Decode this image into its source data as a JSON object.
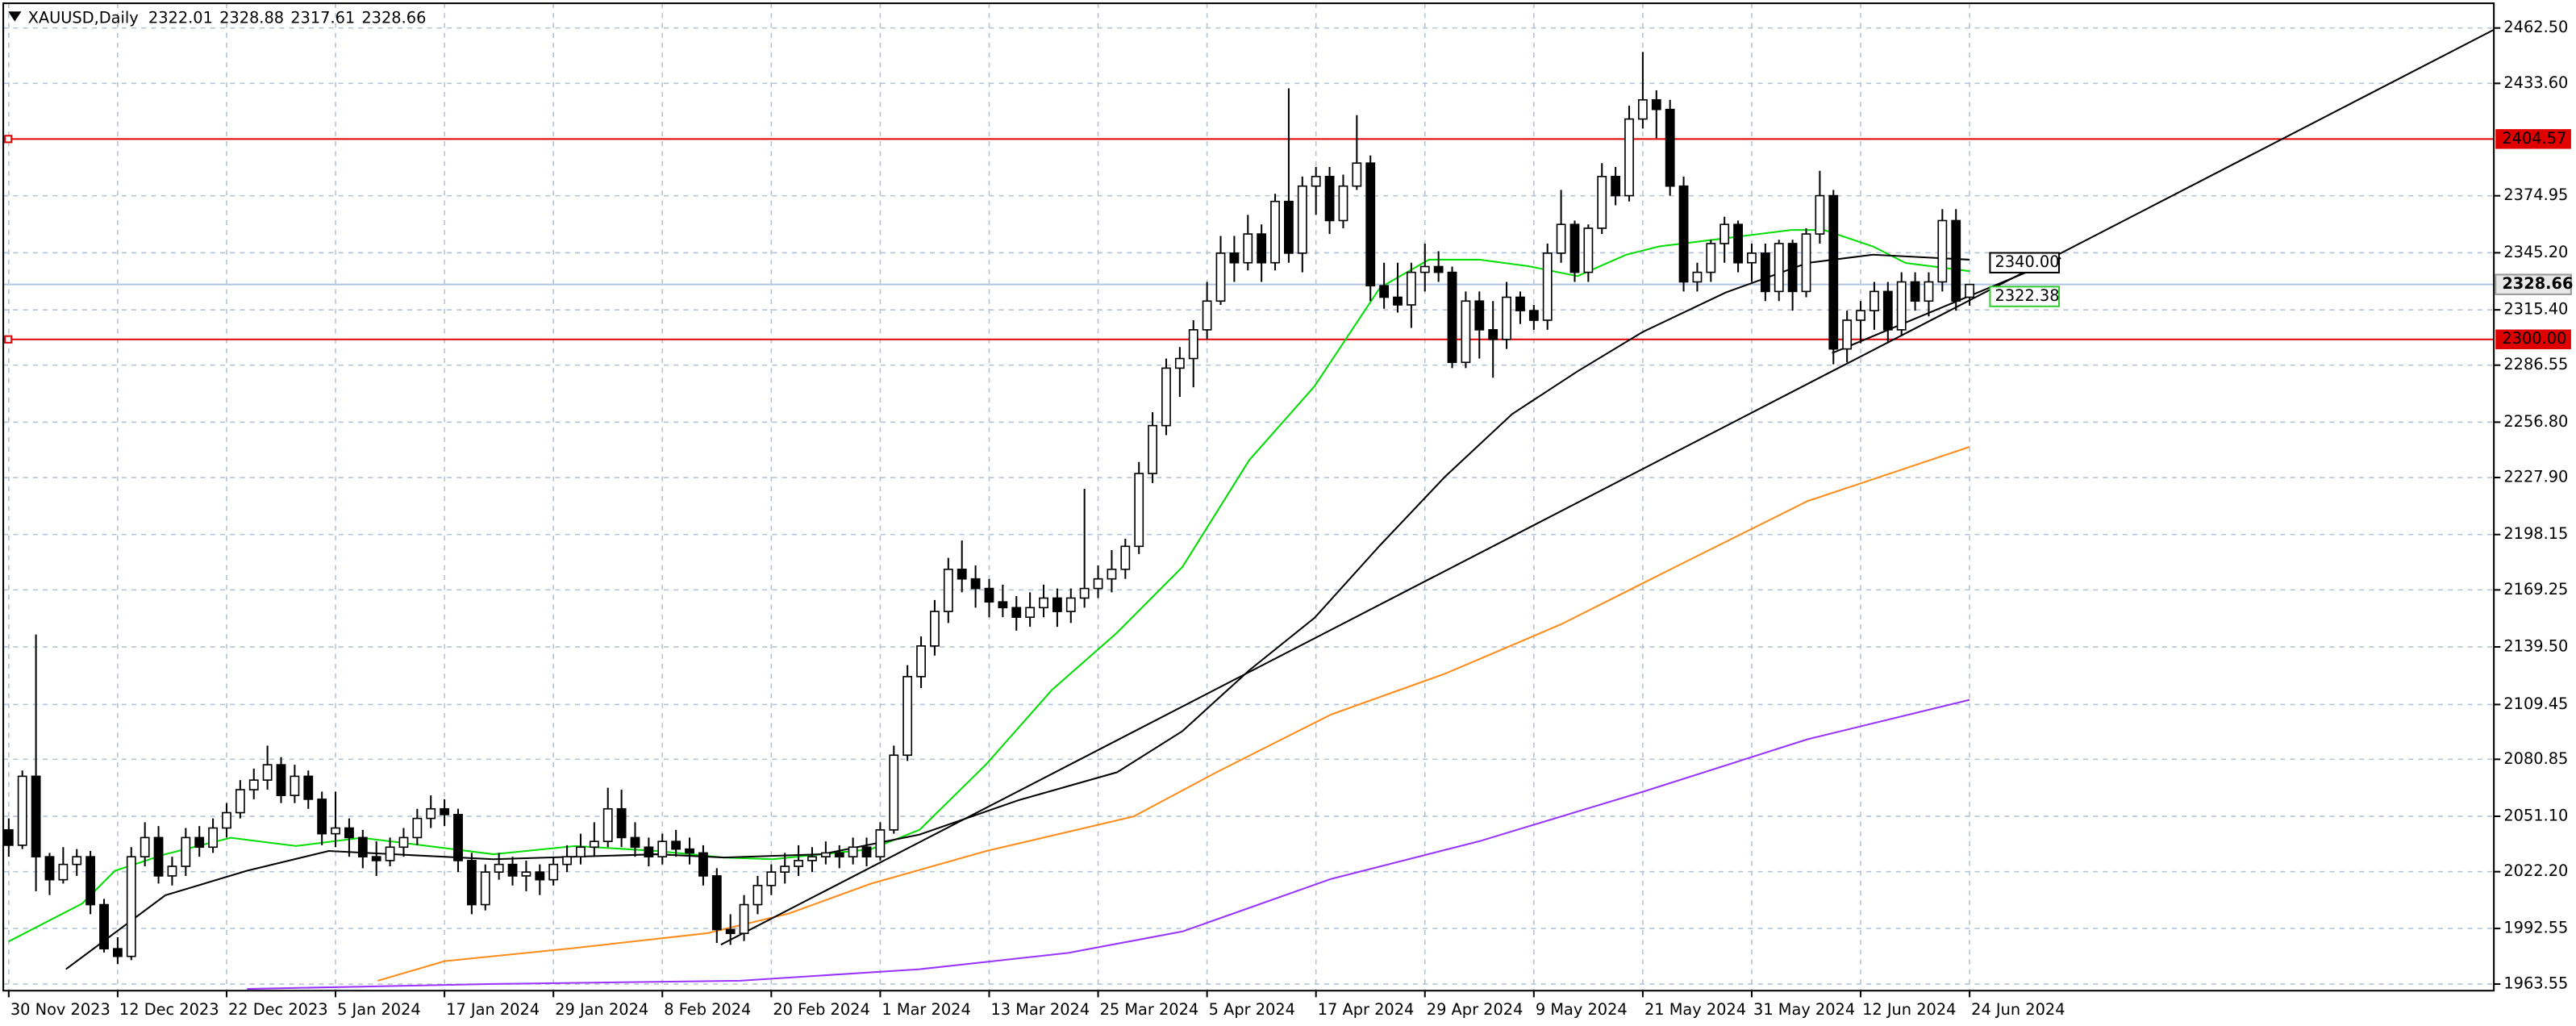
{
  "chart_data": {
    "type": "candlestick",
    "title": "XAUUSD,Daily",
    "xlim": [
      -0.4,
      182.5
    ],
    "ylim": [
      1960.1,
      2475.4
    ],
    "xticks": [
      {
        "value": 0,
        "label": "30 Nov 2023"
      },
      {
        "value": 8,
        "label": "12 Dec 2023"
      },
      {
        "value": 16,
        "label": "22 Dec 2023"
      },
      {
        "value": 24,
        "label": "5 Jan 2024"
      },
      {
        "value": 32,
        "label": "17 Jan 2024"
      },
      {
        "value": 40,
        "label": "29 Jan 2024"
      },
      {
        "value": 48,
        "label": "8 Feb 2024"
      },
      {
        "value": 56,
        "label": "20 Feb 2024"
      },
      {
        "value": 64,
        "label": "1 Mar 2024"
      },
      {
        "value": 72,
        "label": "13 Mar 2024"
      },
      {
        "value": 80,
        "label": "25 Mar 2024"
      },
      {
        "value": 88,
        "label": "5 Apr 2024"
      },
      {
        "value": 96,
        "label": "17 Apr 2024"
      },
      {
        "value": 104,
        "label": "29 Apr 2024"
      },
      {
        "value": 112,
        "label": "9 May 2024"
      },
      {
        "value": 120,
        "label": "21 May 2024"
      },
      {
        "value": 128,
        "label": "31 May 2024"
      },
      {
        "value": 136,
        "label": "12 Jun 2024"
      },
      {
        "value": 144,
        "label": "24 Jun 2024"
      }
    ],
    "yticks": [
      {
        "value": 2462.5,
        "label": "2462.50"
      },
      {
        "value": 2433.6,
        "label": "2433.60"
      },
      2374.95,
      {
        "value": 2345.2,
        "label": "2345.20"
      },
      {
        "value": 2315.4,
        "label": "2315.40"
      },
      2286.55,
      {
        "value": 2256.8,
        "label": "2256.80"
      },
      {
        "value": 2227.9,
        "label": "2227.90"
      },
      2198.15,
      2169.25,
      {
        "value": 2139.5,
        "label": "2139.50"
      },
      2109.45,
      2080.85,
      {
        "value": 2051.1,
        "label": "2051.10"
      },
      {
        "value": 2022.2,
        "label": "2022.20"
      },
      1992.55,
      1963.55
    ],
    "grid": true,
    "up_color": "#ffffff",
    "down_color": "#000000",
    "last_price_color": "#b0c4de",
    "candles": [
      [
        2044,
        2050,
        2030,
        2036
      ],
      [
        2036,
        2075,
        2034,
        2072
      ],
      [
        2072,
        2146,
        2012,
        2030
      ],
      [
        2030,
        2032,
        2010,
        2018
      ],
      [
        2018,
        2035,
        2016,
        2026
      ],
      [
        2026,
        2034,
        2020,
        2030
      ],
      [
        2030,
        2033,
        2000,
        2005
      ],
      [
        2005,
        2008,
        1980,
        1982
      ],
      [
        1982,
        1988,
        1974,
        1978
      ],
      [
        1978,
        2035,
        1976,
        2030
      ],
      [
        2030,
        2048,
        2025,
        2040
      ],
      [
        2040,
        2046,
        2016,
        2020
      ],
      [
        2020,
        2030,
        2015,
        2025
      ],
      [
        2025,
        2045,
        2020,
        2040
      ],
      [
        2040,
        2046,
        2030,
        2035
      ],
      [
        2035,
        2050,
        2032,
        2045
      ],
      [
        2045,
        2058,
        2040,
        2053
      ],
      [
        2053,
        2070,
        2050,
        2065
      ],
      [
        2065,
        2076,
        2060,
        2070
      ],
      [
        2070,
        2088,
        2065,
        2078
      ],
      [
        2078,
        2082,
        2058,
        2062
      ],
      [
        2062,
        2078,
        2058,
        2072
      ],
      [
        2072,
        2075,
        2055,
        2060
      ],
      [
        2060,
        2064,
        2036,
        2042
      ],
      [
        2042,
        2064,
        2035,
        2045
      ],
      [
        2045,
        2050,
        2030,
        2040
      ],
      [
        2040,
        2044,
        2024,
        2030
      ],
      [
        2030,
        2038,
        2020,
        2028
      ],
      [
        2028,
        2040,
        2025,
        2035
      ],
      [
        2035,
        2045,
        2030,
        2040
      ],
      [
        2040,
        2055,
        2036,
        2050
      ],
      [
        2050,
        2062,
        2045,
        2055
      ],
      [
        2055,
        2060,
        2046,
        2052
      ],
      [
        2052,
        2055,
        2022,
        2028
      ],
      [
        2028,
        2032,
        2000,
        2005
      ],
      [
        2005,
        2026,
        2002,
        2022
      ],
      [
        2022,
        2032,
        2018,
        2026
      ],
      [
        2026,
        2030,
        2015,
        2020
      ],
      [
        2020,
        2028,
        2012,
        2022
      ],
      [
        2022,
        2026,
        2010,
        2018
      ],
      [
        2018,
        2030,
        2015,
        2026
      ],
      [
        2026,
        2036,
        2022,
        2030
      ],
      [
        2030,
        2042,
        2026,
        2035
      ],
      [
        2035,
        2048,
        2030,
        2038
      ],
      [
        2038,
        2066,
        2035,
        2055
      ],
      [
        2055,
        2065,
        2035,
        2040
      ],
      [
        2040,
        2048,
        2030,
        2035
      ],
      [
        2035,
        2040,
        2025,
        2030
      ],
      [
        2030,
        2042,
        2026,
        2038
      ],
      [
        2038,
        2044,
        2030,
        2034
      ],
      [
        2034,
        2040,
        2026,
        2032
      ],
      [
        2032,
        2036,
        2015,
        2020
      ],
      [
        2020,
        2024,
        1985,
        1992
      ],
      [
        1992,
        2000,
        1984,
        1990
      ],
      [
        1990,
        2010,
        1986,
        2005
      ],
      [
        2005,
        2020,
        2000,
        2015
      ],
      [
        2015,
        2026,
        2010,
        2022
      ],
      [
        2022,
        2032,
        2016,
        2025
      ],
      [
        2025,
        2036,
        2020,
        2028
      ],
      [
        2028,
        2035,
        2022,
        2030
      ],
      [
        2030,
        2038,
        2026,
        2032
      ],
      [
        2032,
        2036,
        2024,
        2030
      ],
      [
        2030,
        2040,
        2026,
        2035
      ],
      [
        2035,
        2040,
        2025,
        2030
      ],
      [
        2030,
        2048,
        2028,
        2044
      ],
      [
        2044,
        2088,
        2042,
        2083
      ],
      [
        2083,
        2130,
        2080,
        2124
      ],
      [
        2124,
        2145,
        2118,
        2140
      ],
      [
        2140,
        2164,
        2135,
        2158
      ],
      [
        2158,
        2186,
        2152,
        2180
      ],
      [
        2180,
        2195,
        2168,
        2175
      ],
      [
        2175,
        2182,
        2160,
        2170
      ],
      [
        2170,
        2175,
        2155,
        2163
      ],
      [
        2163,
        2172,
        2155,
        2160
      ],
      [
        2160,
        2166,
        2148,
        2155
      ],
      [
        2155,
        2168,
        2150,
        2160
      ],
      [
        2160,
        2172,
        2155,
        2165
      ],
      [
        2165,
        2170,
        2150,
        2158
      ],
      [
        2158,
        2170,
        2152,
        2165
      ],
      [
        2165,
        2222,
        2160,
        2170
      ],
      [
        2170,
        2182,
        2165,
        2175
      ],
      [
        2175,
        2190,
        2168,
        2180
      ],
      [
        2180,
        2196,
        2175,
        2192
      ],
      [
        2192,
        2236,
        2188,
        2230
      ],
      [
        2230,
        2262,
        2225,
        2255
      ],
      [
        2255,
        2290,
        2250,
        2285
      ],
      [
        2285,
        2296,
        2270,
        2290
      ],
      [
        2290,
        2310,
        2275,
        2305
      ],
      [
        2305,
        2330,
        2300,
        2320
      ],
      [
        2320,
        2354,
        2318,
        2345
      ],
      [
        2345,
        2354,
        2330,
        2340
      ],
      [
        2340,
        2365,
        2336,
        2355
      ],
      [
        2355,
        2360,
        2330,
        2340
      ],
      [
        2340,
        2376,
        2336,
        2372
      ],
      [
        2372,
        2431,
        2340,
        2345
      ],
      [
        2345,
        2385,
        2335,
        2380
      ],
      [
        2380,
        2390,
        2365,
        2385
      ],
      [
        2385,
        2390,
        2355,
        2362
      ],
      [
        2362,
        2386,
        2358,
        2380
      ],
      [
        2380,
        2417,
        2378,
        2392
      ],
      [
        2392,
        2396,
        2320,
        2328
      ],
      [
        2328,
        2340,
        2316,
        2322
      ],
      [
        2322,
        2340,
        2314,
        2318
      ],
      [
        2318,
        2340,
        2306,
        2335
      ],
      [
        2335,
        2350,
        2325,
        2338
      ],
      [
        2338,
        2346,
        2330,
        2335
      ],
      [
        2335,
        2338,
        2285,
        2288
      ],
      [
        2288,
        2325,
        2285,
        2320
      ],
      [
        2320,
        2325,
        2290,
        2305
      ],
      [
        2305,
        2320,
        2280,
        2300
      ],
      [
        2300,
        2330,
        2295,
        2322
      ],
      [
        2322,
        2325,
        2308,
        2315
      ],
      [
        2315,
        2318,
        2305,
        2310
      ],
      [
        2310,
        2350,
        2305,
        2345
      ],
      [
        2345,
        2378,
        2340,
        2360
      ],
      [
        2360,
        2362,
        2330,
        2335
      ],
      [
        2335,
        2360,
        2330,
        2358
      ],
      [
        2358,
        2392,
        2355,
        2385
      ],
      [
        2385,
        2390,
        2370,
        2375
      ],
      [
        2375,
        2422,
        2372,
        2415
      ],
      [
        2415,
        2450,
        2410,
        2425
      ],
      [
        2425,
        2430,
        2405,
        2420
      ],
      [
        2420,
        2425,
        2375,
        2380
      ],
      [
        2380,
        2385,
        2325,
        2330
      ],
      [
        2330,
        2340,
        2325,
        2335
      ],
      [
        2335,
        2352,
        2330,
        2350
      ],
      [
        2350,
        2364,
        2340,
        2360
      ],
      [
        2360,
        2362,
        2335,
        2340
      ],
      [
        2340,
        2350,
        2330,
        2345
      ],
      [
        2345,
        2350,
        2320,
        2325
      ],
      [
        2325,
        2352,
        2320,
        2350
      ],
      [
        2350,
        2352,
        2315,
        2325
      ],
      [
        2325,
        2358,
        2322,
        2355
      ],
      [
        2355,
        2388,
        2350,
        2375
      ],
      [
        2375,
        2378,
        2287,
        2295
      ],
      [
        2295,
        2315,
        2288,
        2310
      ],
      [
        2310,
        2320,
        2298,
        2315
      ],
      [
        2315,
        2330,
        2305,
        2325
      ],
      [
        2325,
        2330,
        2298,
        2305
      ],
      [
        2305,
        2335,
        2302,
        2330
      ],
      [
        2330,
        2335,
        2315,
        2320
      ],
      [
        2320,
        2335,
        2312,
        2330
      ],
      [
        2330,
        2368,
        2325,
        2362
      ],
      [
        2362,
        2368,
        2315,
        2320
      ],
      [
        2322.01,
        2328.88,
        2317.61,
        2328.66
      ]
    ],
    "series": [
      {
        "color": "#00dd00",
        "x": [
          0,
          5.4,
          7.8,
          11.5,
          16.3,
          21.1,
          25.9,
          30.8,
          35.6,
          41.6,
          47.6,
          52.5,
          56.1,
          59.7,
          63.3,
          66.9,
          71.8,
          76.6,
          81.4,
          86.2,
          91.1,
          95.9,
          100.7,
          104.3,
          108.0,
          111.6,
          115.2,
          118.8,
          121.2,
          126.1,
          130.9,
          133.3,
          136.9,
          139.3,
          144
        ],
        "values": [
          1985.8,
          2005.6,
          2022.7,
          2031.3,
          2039.9,
          2035.6,
          2039.9,
          2035.6,
          2031.3,
          2035.6,
          2033.0,
          2029.6,
          2028.7,
          2031.3,
          2033.9,
          2044.1,
          2078.4,
          2117.0,
          2147.0,
          2181.3,
          2237.0,
          2275.6,
          2327.0,
          2341.6,
          2341.6,
          2338.2,
          2333.0,
          2344.2,
          2348.5,
          2352.8,
          2357.1,
          2357.1,
          2348.5,
          2339.9,
          2335.6
        ]
      },
      {
        "color": "#000000",
        "x": [
          4.2,
          11.5,
          17.5,
          23.5,
          35.6,
          47.6,
          52.5,
          59.7,
          66.9,
          74.2,
          81.4,
          86.2,
          91.1,
          95.9,
          100.7,
          105.5,
          110.4,
          115.2,
          120.0,
          126.1,
          132.1,
          136.9,
          144
        ],
        "values": [
          1971.3,
          2009.9,
          2022.7,
          2033.0,
          2028.7,
          2031.3,
          2029.6,
          2031.3,
          2041.6,
          2059.6,
          2074.1,
          2095.6,
          2127.3,
          2154.7,
          2192.5,
          2228.5,
          2261.0,
          2283.3,
          2303.9,
          2324.5,
          2339.9,
          2344.2,
          2341.6
        ]
      },
      {
        "color": "#ff8c1a",
        "x": [
          27.1,
          32.0,
          41.6,
          51.3,
          57.3,
          63.3,
          71.8,
          82.6,
          88.7,
          97.1,
          105.5,
          114.0,
          122.4,
          132.1,
          144
        ],
        "values": [
          1965.3,
          1975.5,
          1982.4,
          1990.1,
          2000.4,
          2015.9,
          2033.0,
          2051.0,
          2074.1,
          2104.2,
          2125.6,
          2151.3,
          2181.3,
          2215.6,
          2243.9
        ]
      },
      {
        "color": "#9933ff",
        "x": [
          17.5,
          35.6,
          53.7,
          66.9,
          77.8,
          86.2,
          97.1,
          108.0,
          120.0,
          132.1,
          144
        ],
        "values": [
          1961.0,
          1963.6,
          1965.3,
          1971.3,
          1979.8,
          1991.0,
          2018.4,
          2038.1,
          2063.9,
          2091.3,
          2111.9
        ]
      }
    ],
    "trendlines": [
      {
        "color": "#000000",
        "x": [
          52.3,
          182.5
        ],
        "y": [
          1984.1,
          2461.6
        ]
      },
      {
        "color": "#000000",
        "x": [
          133.9,
          150.7
        ],
        "y": [
          2292.8,
          2342.5
        ]
      }
    ],
    "hlines": [
      {
        "value": 2404.57,
        "label": "2404.57",
        "color": "#e00000"
      },
      {
        "value": 2300,
        "label": "2300.00",
        "color": "#e00000"
      }
    ],
    "annotations": [
      {
        "x": 145.5,
        "value": 2340,
        "label": "2340.00",
        "color": "#000000"
      },
      {
        "x": 145.5,
        "value": 2322.38,
        "label": "2322.38",
        "color": "#33cc33"
      }
    ]
  }
}
